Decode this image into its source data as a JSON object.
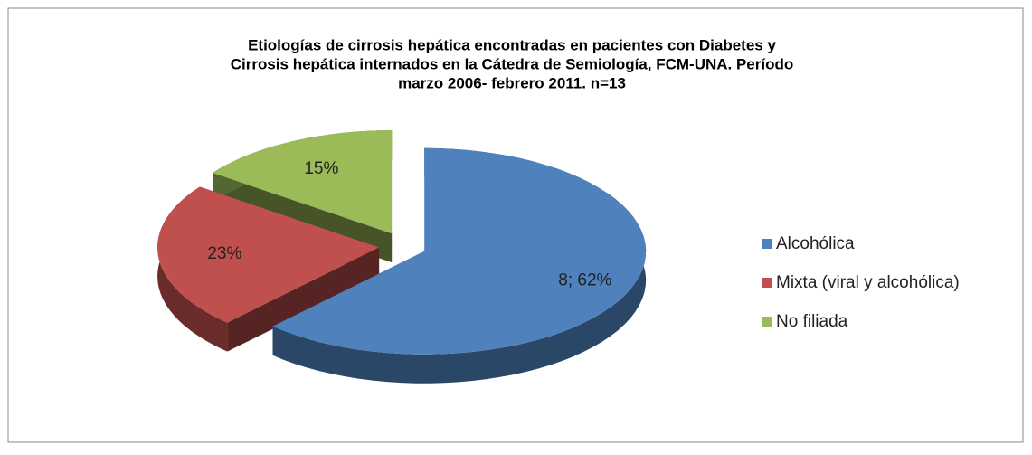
{
  "chart_data": {
    "type": "pie",
    "title": [
      "Etiologías de cirrosis hepática encontradas en pacientes con Diabetes y",
      "Cirrosis hepática internados en la Cátedra de Semiología, FCM-UNA. Período",
      "marzo 2006- febrero 2011. n=13"
    ],
    "categories": [
      "Alcohólica",
      "Mixta (viral y alcohólica)",
      "No filiada"
    ],
    "values": [
      62,
      23,
      15
    ],
    "value_labels": [
      "8; 62%",
      "23%",
      "15%"
    ],
    "colors": [
      "#4f81bd",
      "#c0504d",
      "#9bbb59"
    ],
    "legend": "right"
  }
}
